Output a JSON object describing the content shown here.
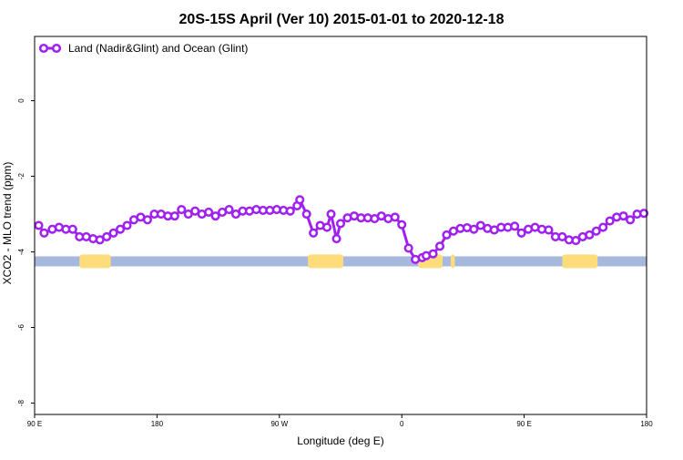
{
  "chart_data": {
    "type": "line",
    "title": "20S-15S April (Ver 10)   2015-01-01 to 2020-12-18",
    "xlabel": "Longitude (deg E)",
    "ylabel": "XCO2 - MLO trend (ppm)",
    "x_ticks": [
      {
        "value": 90,
        "label": "90 E"
      },
      {
        "value": 180,
        "label": "180"
      },
      {
        "value": 270,
        "label": "90 W"
      },
      {
        "value": 360,
        "label": "0"
      },
      {
        "value": 450,
        "label": "90 E"
      },
      {
        "value": 540,
        "label": "180"
      }
    ],
    "y_ticks": [
      {
        "value": 0,
        "label": "0"
      },
      {
        "value": -2,
        "label": "-2"
      },
      {
        "value": -4,
        "label": "-4"
      },
      {
        "value": -6,
        "label": "-6"
      },
      {
        "value": -8,
        "label": "-8"
      }
    ],
    "xlim": [
      90,
      540
    ],
    "ylim": [
      -8.3,
      1.7
    ],
    "legend_position": "top-left",
    "colors": {
      "series": "#a020f0",
      "ocean_strip": "#a6b8dc",
      "land_strip": "#fddc7c",
      "axis": "#000000"
    },
    "surface_strip": {
      "y": -4.25,
      "land_segments_lon": [
        [
          123,
          146
        ],
        [
          291,
          317
        ],
        [
          372,
          390
        ],
        [
          396,
          399
        ],
        [
          478,
          504
        ]
      ]
    },
    "series": [
      {
        "name": "Land (Nadir&Glint) and Ocean (Glint)",
        "x": [
          93,
          97,
          103,
          108,
          113,
          118,
          123,
          128,
          133,
          138,
          143,
          148,
          153,
          158,
          163,
          168,
          173,
          178,
          183,
          188,
          193,
          198,
          203,
          208,
          213,
          218,
          223,
          228,
          233,
          238,
          243,
          248,
          253,
          258,
          263,
          268,
          273,
          278,
          283,
          285,
          290,
          295,
          300,
          305,
          308,
          312,
          315,
          320,
          325,
          330,
          335,
          340,
          345,
          350,
          355,
          360,
          365,
          370,
          375,
          378,
          383,
          388,
          393,
          398,
          403,
          408,
          413,
          418,
          423,
          428,
          433,
          438,
          443,
          448,
          453,
          458,
          463,
          468,
          473,
          478,
          483,
          488,
          493,
          498,
          503,
          508,
          513,
          518,
          523,
          528,
          533,
          538
        ],
        "y": [
          -3.3,
          -3.5,
          -3.4,
          -3.35,
          -3.4,
          -3.4,
          -3.6,
          -3.6,
          -3.65,
          -3.68,
          -3.6,
          -3.5,
          -3.4,
          -3.3,
          -3.15,
          -3.08,
          -3.15,
          -3.0,
          -3.0,
          -3.05,
          -3.05,
          -2.88,
          -3.0,
          -2.92,
          -3.0,
          -2.95,
          -3.05,
          -2.95,
          -2.88,
          -3.0,
          -2.92,
          -2.92,
          -2.88,
          -2.9,
          -2.9,
          -2.88,
          -2.9,
          -2.92,
          -2.78,
          -2.62,
          -3.0,
          -3.5,
          -3.3,
          -3.35,
          -3.0,
          -3.65,
          -3.25,
          -3.1,
          -3.05,
          -3.1,
          -3.1,
          -3.12,
          -3.05,
          -3.12,
          -3.08,
          -3.28,
          -3.9,
          -4.2,
          -4.15,
          -4.1,
          -4.05,
          -3.85,
          -3.55,
          -3.45,
          -3.38,
          -3.36,
          -3.4,
          -3.3,
          -3.38,
          -3.42,
          -3.35,
          -3.35,
          -3.32,
          -3.5,
          -3.4,
          -3.35,
          -3.4,
          -3.42,
          -3.6,
          -3.6,
          -3.68,
          -3.7,
          -3.6,
          -3.55,
          -3.45,
          -3.35,
          -3.18,
          -3.08,
          -3.05,
          -3.15,
          -3.0,
          -2.98
        ]
      }
    ]
  }
}
